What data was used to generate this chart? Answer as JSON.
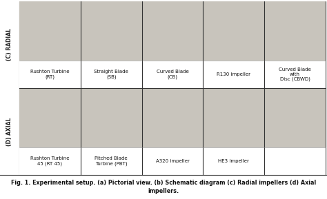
{
  "title": "Fig. 1. Experimental setup. (a) Pictorial view. (b) Schematic diagram (c) Radial impellers (d) Axial\nimpellers.",
  "row1_label": "(C) RADIAL",
  "row2_label": "(D) AXIAL",
  "row1_items": [
    {
      "name": "Rushton Turbine\n(RT)",
      "col": 0
    },
    {
      "name": "Straight Blade\n(SB)",
      "col": 1
    },
    {
      "name": "Curved Blade\n(CB)",
      "col": 2
    },
    {
      "name": "R130 impeller",
      "col": 3
    },
    {
      "name": "Curved Blade\nwith\nDisc (CBWD)",
      "col": 4
    }
  ],
  "row2_items": [
    {
      "name": "Rushton Turbine\n45 (RT 45)",
      "col": 0
    },
    {
      "name": "Pitched Blade\nTurbine (PBT)",
      "col": 1
    },
    {
      "name": "A320 impeller",
      "col": 2
    },
    {
      "name": "HE3 impeller",
      "col": 3
    }
  ],
  "img_bg_color": "#c8c4bc",
  "label_bg_color": "#ffffff",
  "border_color": "#333333",
  "label_color": "#111111",
  "caption_color": "#111111",
  "row_label_color": "#222222",
  "fig_bg": "#ffffff",
  "fig_width": 4.74,
  "fig_height": 2.89,
  "dpi": 100,
  "n_cols": 5,
  "n_rows": 2,
  "row_label_fontsize": 5.5,
  "caption_fontsize": 5.8,
  "name_fontsize": 5.0
}
